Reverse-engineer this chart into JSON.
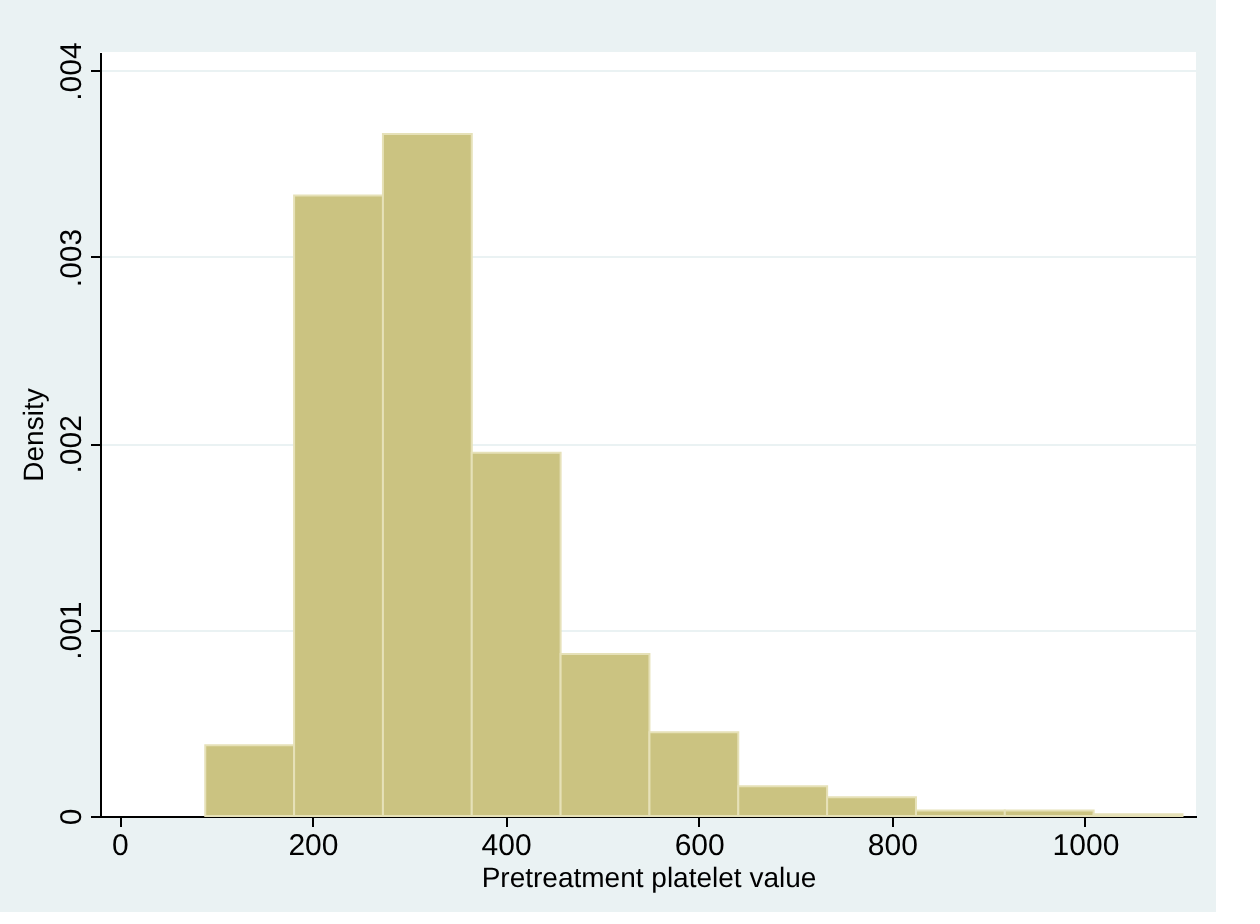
{
  "chart_data": {
    "type": "histogram",
    "xlabel": "Pretreatment platelet value",
    "ylabel": "Density",
    "bins": [
      89,
      181,
      273,
      365,
      457,
      549,
      641,
      733,
      825,
      917,
      1009,
      1101
    ],
    "values": [
      0.00038,
      0.00333,
      0.00366,
      0.00195,
      0.00087,
      0.00045,
      0.00016,
      0.0001,
      3e-05,
      3e-05,
      1e-05
    ],
    "color": "#cbc381",
    "xlim": [
      -20,
      1115
    ],
    "ylim": [
      0,
      0.0041
    ],
    "xticks": [
      0,
      200,
      400,
      600,
      800,
      1000
    ],
    "yticks": [
      {
        "value": 0,
        "label": "0"
      },
      {
        "value": 0.001,
        "label": ".001"
      },
      {
        "value": 0.002,
        "label": ".002"
      },
      {
        "value": 0.003,
        "label": ".003"
      },
      {
        "value": 0.004,
        "label": ".004"
      }
    ],
    "grid": "y"
  }
}
